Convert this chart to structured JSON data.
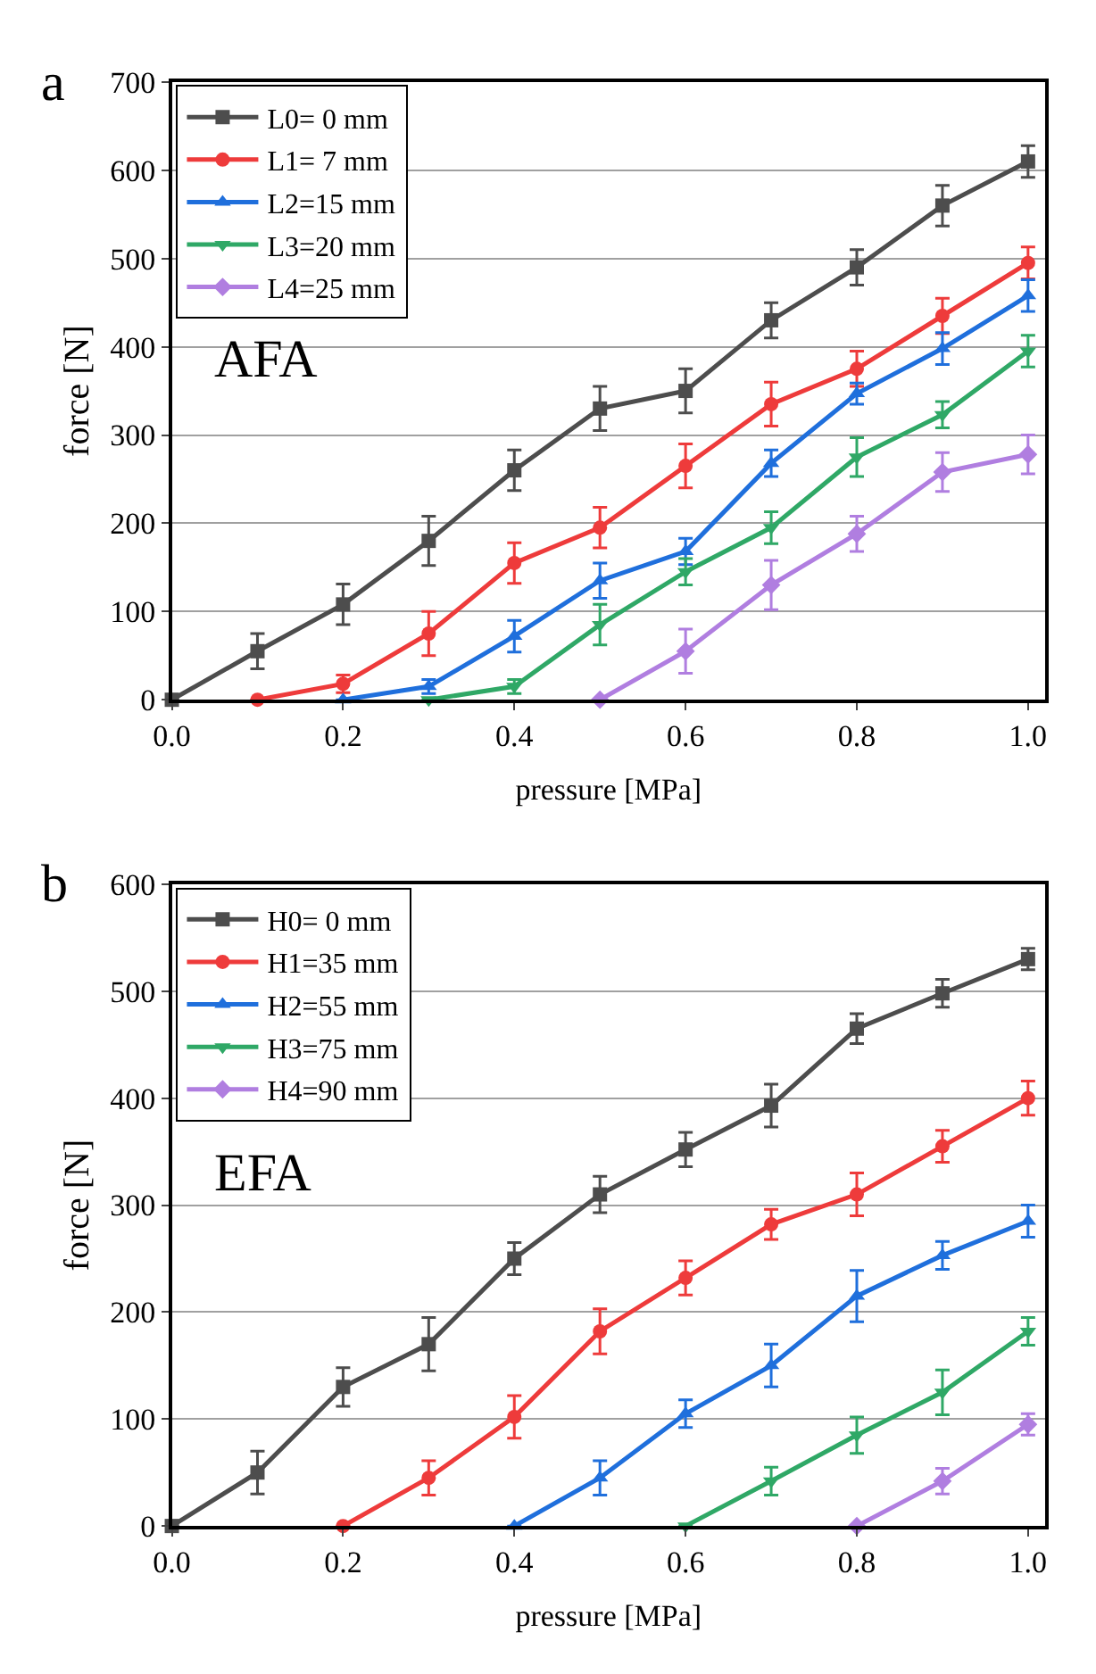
{
  "chart_data": [
    {
      "type": "line",
      "annotations": [
        "a",
        "AFA"
      ],
      "xlabel": "pressure [MPa]",
      "ylabel": "force [N]",
      "xlim": [
        0,
        1.02
      ],
      "xticks": [
        {
          "value": 0,
          "label": "0.0"
        },
        {
          "value": 0.2,
          "label": "0.2"
        },
        {
          "value": 0.4,
          "label": "0.4"
        },
        {
          "value": 0.6,
          "label": "0.6"
        },
        {
          "value": 0.8,
          "label": "0.8"
        },
        {
          "value": 1,
          "label": "1.0"
        }
      ],
      "ylim": [
        0,
        700
      ],
      "yticks": [
        0,
        100,
        200,
        300,
        400,
        500,
        600,
        700
      ],
      "grid": "y",
      "legend": "top left",
      "line_style": "solid",
      "series": [
        {
          "name": "L0= 0 mm",
          "color": "#4d4d4d",
          "marker": "square",
          "x": [
            0,
            0.1,
            0.2,
            0.3,
            0.4,
            0.5,
            0.6,
            0.7,
            0.8,
            0.9,
            1.0
          ],
          "values": [
            0,
            55,
            108,
            180,
            260,
            330,
            350,
            430,
            490,
            560,
            610
          ],
          "errors": [
            null,
            20,
            23,
            28,
            23,
            25,
            25,
            20,
            20,
            23,
            18
          ]
        },
        {
          "name": "L1= 7 mm",
          "color": "#ee3b3b",
          "marker": "circle",
          "x": [
            0.1,
            0.2,
            0.3,
            0.4,
            0.5,
            0.6,
            0.7,
            0.8,
            0.9,
            1.0
          ],
          "values": [
            0,
            18,
            75,
            155,
            195,
            265,
            335,
            375,
            435,
            495
          ],
          "errors": [
            null,
            10,
            25,
            23,
            23,
            25,
            25,
            20,
            20,
            18
          ]
        },
        {
          "name": "L2=15 mm",
          "color": "#1f6fdc",
          "marker": "triangle",
          "x": [
            0.2,
            0.3,
            0.4,
            0.5,
            0.6,
            0.7,
            0.8,
            0.9,
            1.0
          ],
          "values": [
            0,
            15,
            72,
            135,
            168,
            268,
            347,
            398,
            458
          ],
          "errors": [
            null,
            8,
            18,
            20,
            15,
            15,
            12,
            18,
            18
          ]
        },
        {
          "name": "L3=20 mm",
          "color": "#2fa866",
          "marker": "triangle-down",
          "x": [
            0.3,
            0.4,
            0.5,
            0.6,
            0.7,
            0.8,
            0.9,
            1.0
          ],
          "values": [
            0,
            15,
            85,
            145,
            195,
            275,
            323,
            395
          ],
          "errors": [
            null,
            8,
            23,
            15,
            18,
            22,
            15,
            18
          ]
        },
        {
          "name": "L4=25 mm",
          "color": "#b07ee0",
          "marker": "diamond",
          "x": [
            0.5,
            0.6,
            0.7,
            0.8,
            0.9,
            1.0
          ],
          "values": [
            0,
            55,
            130,
            188,
            258,
            278
          ],
          "errors": [
            null,
            25,
            28,
            20,
            22,
            22
          ]
        }
      ]
    },
    {
      "type": "line",
      "annotations": [
        "b",
        "EFA"
      ],
      "xlabel": "pressure [MPa]",
      "ylabel": "force [N]",
      "xlim": [
        0,
        1.02
      ],
      "xticks": [
        {
          "value": 0,
          "label": "0.0"
        },
        {
          "value": 0.2,
          "label": "0.2"
        },
        {
          "value": 0.4,
          "label": "0.4"
        },
        {
          "value": 0.6,
          "label": "0.6"
        },
        {
          "value": 0.8,
          "label": "0.8"
        },
        {
          "value": 1,
          "label": "1.0"
        }
      ],
      "ylim": [
        0,
        600
      ],
      "yticks": [
        0,
        100,
        200,
        300,
        400,
        500,
        600
      ],
      "grid": "y",
      "legend": "top left",
      "line_style": "solid",
      "series": [
        {
          "name": "H0= 0 mm",
          "color": "#4d4d4d",
          "marker": "square",
          "x": [
            0,
            0.1,
            0.2,
            0.3,
            0.4,
            0.5,
            0.6,
            0.7,
            0.8,
            0.9,
            1.0
          ],
          "values": [
            0,
            50,
            130,
            170,
            250,
            310,
            352,
            393,
            465,
            498,
            530
          ],
          "errors": [
            null,
            20,
            18,
            25,
            15,
            17,
            16,
            20,
            14,
            13,
            10
          ]
        },
        {
          "name": "H1=35 mm",
          "color": "#ee3b3b",
          "marker": "circle",
          "x": [
            0.2,
            0.3,
            0.4,
            0.5,
            0.6,
            0.7,
            0.8,
            0.9,
            1.0
          ],
          "values": [
            0,
            45,
            102,
            182,
            232,
            282,
            310,
            355,
            400
          ],
          "errors": [
            null,
            16,
            20,
            21,
            16,
            14,
            20,
            15,
            16
          ]
        },
        {
          "name": "H2=55 mm",
          "color": "#1f6fdc",
          "marker": "triangle",
          "x": [
            0.4,
            0.5,
            0.6,
            0.7,
            0.8,
            0.9,
            1.0
          ],
          "values": [
            0,
            45,
            105,
            150,
            215,
            253,
            285
          ],
          "errors": [
            null,
            16,
            13,
            20,
            24,
            13,
            15
          ]
        },
        {
          "name": "H3=75 mm",
          "color": "#2fa866",
          "marker": "triangle-down",
          "x": [
            0.6,
            0.7,
            0.8,
            0.9,
            1.0
          ],
          "values": [
            0,
            42,
            85,
            125,
            182
          ],
          "errors": [
            null,
            13,
            17,
            21,
            13
          ]
        },
        {
          "name": "H4=90 mm",
          "color": "#b07ee0",
          "marker": "diamond",
          "x": [
            0.8,
            0.9,
            1.0
          ],
          "values": [
            0,
            42,
            95
          ],
          "errors": [
            null,
            12,
            10
          ]
        }
      ]
    }
  ]
}
